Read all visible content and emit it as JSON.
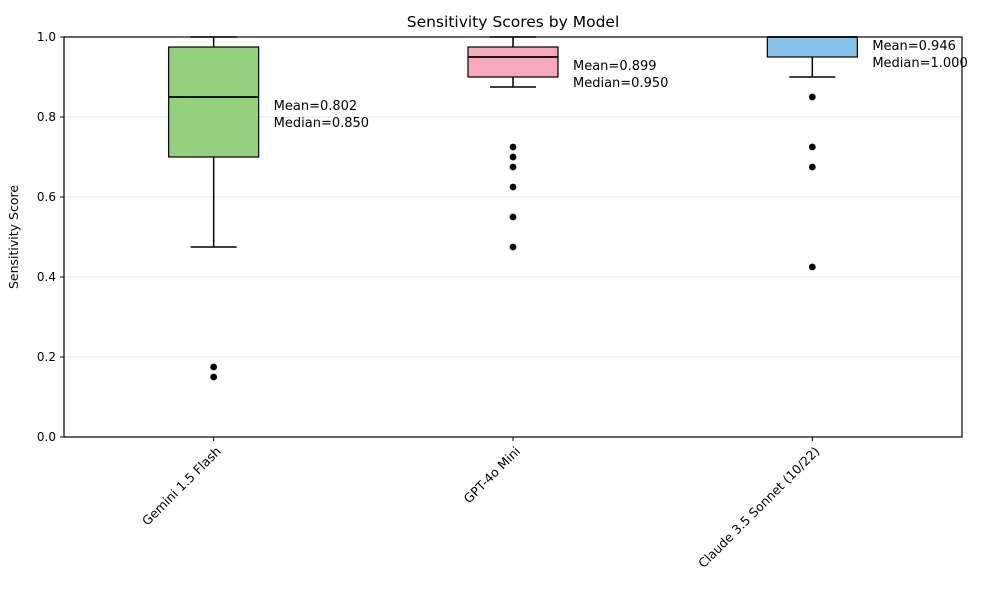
{
  "chart_data": {
    "type": "box",
    "title": "Sensitivity Scores by Model",
    "ylabel": "Sensitivity Score",
    "xlabel": "",
    "ylim": [
      0.0,
      1.0
    ],
    "yticks": [
      0.0,
      0.2,
      0.4,
      0.6,
      0.8,
      1.0
    ],
    "ytick_labels": [
      "0.0",
      "0.2",
      "0.4",
      "0.6",
      "0.8",
      "1.0"
    ],
    "grid": "horizontal-light",
    "legend": "none",
    "categories": [
      "Gemini 1.5 Flash",
      "GPT-4o Mini",
      "Claude 3.5 Sonnet (10/22)"
    ],
    "series": [
      {
        "name": "Gemini 1.5 Flash",
        "slug": "gemini-1-5-flash",
        "box_color": "#94d07e",
        "whisker_low": 0.475,
        "q1": 0.7,
        "median": 0.85,
        "q3": 0.975,
        "whisker_high": 1.0,
        "outliers": [
          0.175,
          0.15
        ],
        "mean": 0.802,
        "mean_label": "Mean=0.802",
        "median_label": "Median=0.850"
      },
      {
        "name": "GPT-4o Mini",
        "slug": "gpt-4o-mini",
        "box_color": "#f7a8bc",
        "whisker_low": 0.875,
        "q1": 0.9,
        "median": 0.95,
        "q3": 0.975,
        "whisker_high": 1.0,
        "outliers": [
          0.725,
          0.7,
          0.675,
          0.625,
          0.55,
          0.475
        ],
        "mean": 0.899,
        "mean_label": "Mean=0.899",
        "median_label": "Median=0.950"
      },
      {
        "name": "Claude 3.5 Sonnet (10/22)",
        "slug": "claude-3-5-sonnet-10-22",
        "box_color": "#87c3eb",
        "whisker_low": 0.9,
        "q1": 0.95,
        "median": 1.0,
        "q3": 1.0,
        "whisker_high": 1.0,
        "outliers": [
          0.85,
          0.725,
          0.675,
          0.425
        ],
        "mean": 0.946,
        "mean_label": "Mean=0.946",
        "median_label": "Median=1.000"
      }
    ],
    "colors": {
      "edge": "#000000",
      "grid": "#e6e6e6",
      "spine": "#000000",
      "flier": "#000000",
      "background": "#ffffff"
    }
  }
}
